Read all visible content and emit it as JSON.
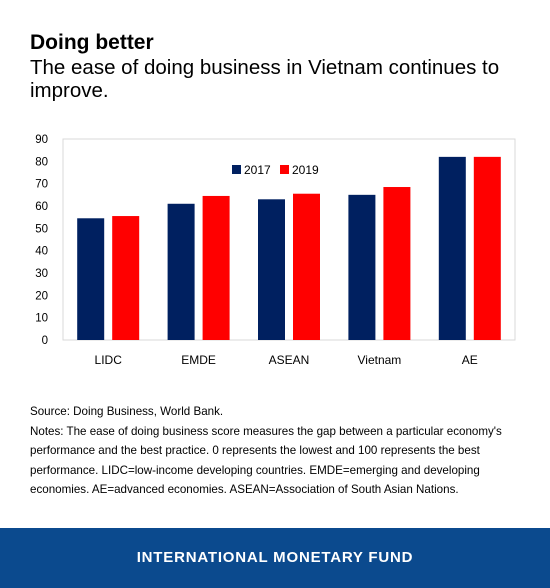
{
  "header": {
    "title": "Doing better",
    "subtitle": "The ease of doing business in Vietnam continues to improve."
  },
  "chart_data": {
    "type": "bar",
    "categories": [
      "LIDC",
      "EMDE",
      "ASEAN",
      "Vietnam",
      "AE"
    ],
    "series": [
      {
        "name": "2017",
        "values": [
          54.5,
          61,
          63,
          65,
          82
        ],
        "color": "#002060"
      },
      {
        "name": "2019",
        "values": [
          55.5,
          64.5,
          65.5,
          68.5,
          82
        ],
        "color": "#ff0000"
      }
    ],
    "yticks": [
      "0",
      "10",
      "20",
      "30",
      "40",
      "50",
      "60",
      "70",
      "80",
      "90"
    ],
    "ylim": [
      0,
      90
    ],
    "legend_position": "top-center",
    "grid": false
  },
  "notes": {
    "source": "Source: Doing Business, World Bank.",
    "text": "Notes: The ease of doing business score measures the gap between a particular economy's performance and the best practice. 0 represents the lowest and 100 represents the best performance. LIDC=low-income developing countries. EMDE=emerging and developing economies. AE=advanced economies. ASEAN=Association of South Asian Nations."
  },
  "footer": {
    "label": "INTERNATIONAL MONETARY FUND",
    "color": "#0b4a8e"
  }
}
